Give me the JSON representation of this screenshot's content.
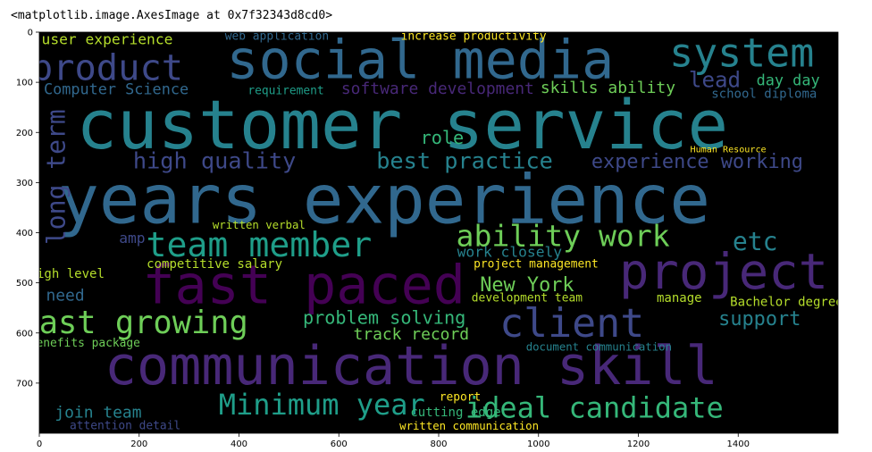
{
  "output_text": "<matplotlib.image.AxesImage at 0x7f32343d8cd0>",
  "chart_data": {
    "type": "image",
    "xlim": [
      0,
      1600
    ],
    "ylim": [
      800,
      0
    ],
    "xticks": [
      0,
      200,
      400,
      600,
      800,
      1000,
      1200,
      1400
    ],
    "yticks": [
      0,
      100,
      200,
      300,
      400,
      500,
      600,
      700
    ],
    "background": "#000000",
    "words": [
      {
        "text": "social media",
        "x": 763,
        "y": 56,
        "h": 107,
        "color": "#31688e"
      },
      {
        "text": "system",
        "x": 1407,
        "y": 41,
        "h": 80,
        "color": "#26828e"
      },
      {
        "text": "customer service",
        "x": 727,
        "y": 185,
        "h": 135,
        "color": "#26828e"
      },
      {
        "text": "years experience",
        "x": 691,
        "y": 334,
        "h": 135,
        "color": "#31688e"
      },
      {
        "text": "product",
        "x": 136,
        "y": 70,
        "h": 72,
        "color": "#3e4989"
      },
      {
        "text": "team member",
        "x": 440,
        "y": 424,
        "h": 68,
        "color": "#1f9e89"
      },
      {
        "text": "ability work",
        "x": 1049,
        "y": 406,
        "h": 59,
        "color": "#6ece58"
      },
      {
        "text": "etc",
        "x": 1434,
        "y": 418,
        "h": 50,
        "color": "#26828e"
      },
      {
        "text": "project",
        "x": 1371,
        "y": 478,
        "h": 99,
        "color": "#482878"
      },
      {
        "text": "fast paced",
        "x": 530,
        "y": 505,
        "h": 107,
        "color": "#440154"
      },
      {
        "text": "fast growing",
        "x": 190,
        "y": 580,
        "h": 63,
        "color": "#6ece58"
      },
      {
        "text": "client",
        "x": 1067,
        "y": 580,
        "h": 80,
        "color": "#3e4989"
      },
      {
        "text": "communication skill",
        "x": 745,
        "y": 666,
        "h": 107,
        "color": "#482878"
      },
      {
        "text": "Minimum year",
        "x": 566,
        "y": 743,
        "h": 57,
        "color": "#1f9e89"
      },
      {
        "text": "ideal candidate",
        "x": 1112,
        "y": 749,
        "h": 57,
        "color": "#35b779"
      },
      {
        "text": "high quality",
        "x": 351,
        "y": 257,
        "h": 45,
        "color": "#3e4989"
      },
      {
        "text": "best practice",
        "x": 852,
        "y": 257,
        "h": 45,
        "color": "#26828e"
      },
      {
        "text": "experience working",
        "x": 1318,
        "y": 259,
        "h": 39,
        "color": "#3e4989"
      },
      {
        "text": "role",
        "x": 807,
        "y": 210,
        "h": 36,
        "color": "#35b779"
      },
      {
        "text": "software development",
        "x": 798,
        "y": 113,
        "h": 32,
        "color": "#482878"
      },
      {
        "text": "skills ability",
        "x": 1139,
        "y": 111,
        "h": 32,
        "color": "#6ece58"
      },
      {
        "text": "Computer Science",
        "x": 154,
        "y": 113,
        "h": 30,
        "color": "#31688e"
      },
      {
        "text": "lead",
        "x": 1353,
        "y": 95,
        "h": 43,
        "color": "#3e4989"
      },
      {
        "text": "day day",
        "x": 1500,
        "y": 95,
        "h": 30,
        "color": "#35b779"
      },
      {
        "text": "user experience",
        "x": 136,
        "y": 14,
        "h": 29,
        "color": "#b5de2b"
      },
      {
        "text": "web application",
        "x": 476,
        "y": 9,
        "h": 23,
        "color": "#31688e"
      },
      {
        "text": "increase productivity",
        "x": 870,
        "y": 9,
        "h": 23,
        "color": "#fde725"
      },
      {
        "text": "school diploma",
        "x": 1452,
        "y": 124,
        "h": 25,
        "color": "#31688e"
      },
      {
        "text": "requirement",
        "x": 494,
        "y": 118,
        "h": 23,
        "color": "#1f9e89"
      },
      {
        "text": "long term",
        "x": 34,
        "y": 289,
        "h": 50,
        "color": "#3e4989",
        "rotate": true
      },
      {
        "text": "New York",
        "x": 977,
        "y": 505,
        "h": 39,
        "color": "#6ece58"
      },
      {
        "text": "problem solving",
        "x": 691,
        "y": 569,
        "h": 36,
        "color": "#35b779"
      },
      {
        "text": "track record",
        "x": 745,
        "y": 603,
        "h": 32,
        "color": "#6ece58"
      },
      {
        "text": "support",
        "x": 1443,
        "y": 573,
        "h": 39,
        "color": "#26828e"
      },
      {
        "text": "Bachelor degree",
        "x": 1497,
        "y": 539,
        "h": 25,
        "color": "#b5de2b"
      },
      {
        "text": "competitive salary",
        "x": 351,
        "y": 463,
        "h": 25,
        "color": "#b5de2b"
      },
      {
        "text": "project management",
        "x": 995,
        "y": 463,
        "h": 23,
        "color": "#fde725"
      },
      {
        "text": "join team",
        "x": 118,
        "y": 759,
        "h": 32,
        "color": "#26828e"
      },
      {
        "text": "cutting edge",
        "x": 834,
        "y": 759,
        "h": 25,
        "color": "#35b779"
      },
      {
        "text": "attention detail",
        "x": 172,
        "y": 786,
        "h": 23,
        "color": "#3e4989"
      },
      {
        "text": "need",
        "x": 52,
        "y": 526,
        "h": 32,
        "color": "#31688e"
      },
      {
        "text": "work closely",
        "x": 942,
        "y": 438,
        "h": 29,
        "color": "#26828e"
      },
      {
        "text": "amp",
        "x": 186,
        "y": 411,
        "h": 29,
        "color": "#3e4989"
      },
      {
        "text": "report",
        "x": 843,
        "y": 729,
        "h": 23,
        "color": "#fde725"
      },
      {
        "text": "written communication",
        "x": 861,
        "y": 786,
        "h": 22,
        "color": "#fde725"
      },
      {
        "text": "manage",
        "x": 1282,
        "y": 531,
        "h": 25,
        "color": "#b5de2b"
      },
      {
        "text": "development team",
        "x": 977,
        "y": 531,
        "h": 23,
        "color": "#b5de2b"
      },
      {
        "text": "high level",
        "x": 55,
        "y": 483,
        "h": 25,
        "color": "#b5de2b"
      },
      {
        "text": "benefits package",
        "x": 91,
        "y": 621,
        "h": 23,
        "color": "#6ece58"
      },
      {
        "text": "Human Resource",
        "x": 1380,
        "y": 235,
        "h": 18,
        "color": "#fde725"
      },
      {
        "text": "written verbal",
        "x": 440,
        "y": 385,
        "h": 22,
        "color": "#b5de2b"
      },
      {
        "text": "document communication",
        "x": 1121,
        "y": 628,
        "h": 22,
        "color": "#26828e"
      }
    ]
  }
}
